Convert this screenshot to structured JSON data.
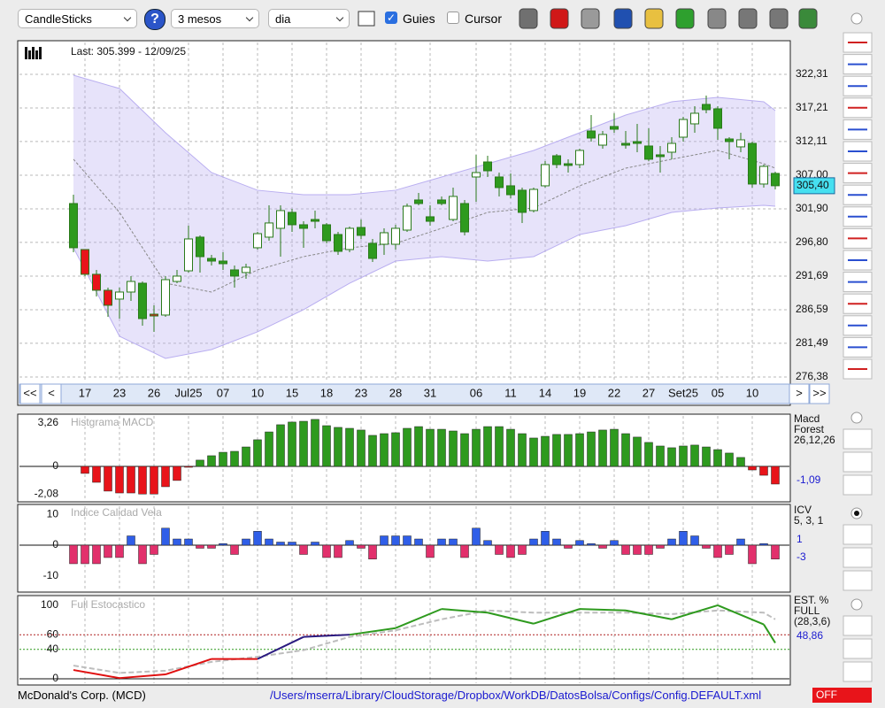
{
  "toolbar": {
    "chart_type": "CandleSticks",
    "help": "?",
    "period": "3 mesos",
    "interval": "dia",
    "guides": {
      "label": "Guies",
      "checked": true
    },
    "cursor": {
      "label": "Cursor",
      "checked": false
    }
  },
  "price_chart": {
    "type": "candlestick",
    "last": "Last: 305.399 - 12/09/25",
    "last_price_label": "305,40",
    "ohlc": [
      [
        302.7,
        304.04,
        295.31,
        295.99
      ],
      [
        295.72,
        295.72,
        291.69,
        291.96
      ],
      [
        291.96,
        292.63,
        288.6,
        289.54
      ],
      [
        289.54,
        289.94,
        285.51,
        287.26
      ],
      [
        288.2,
        289.94,
        285.24,
        289.27
      ],
      [
        289.27,
        291.69,
        287.93,
        290.88
      ],
      [
        290.61,
        290.88,
        284.17,
        285.24
      ],
      [
        285.91,
        287.26,
        283.23,
        285.64
      ],
      [
        285.78,
        291.69,
        285.51,
        291.15
      ],
      [
        290.88,
        292.63,
        290.61,
        291.69
      ],
      [
        292.49,
        299.34,
        292.23,
        297.33
      ],
      [
        297.6,
        297.87,
        292.23,
        294.64
      ],
      [
        294.37,
        294.91,
        293.3,
        293.97
      ],
      [
        293.97,
        295.31,
        292.63,
        293.57
      ],
      [
        292.63,
        293.3,
        289.94,
        291.69
      ],
      [
        292.23,
        293.57,
        291.29,
        293.03
      ],
      [
        295.99,
        298.4,
        295.72,
        298.13
      ],
      [
        297.6,
        302.43,
        297.06,
        299.75
      ],
      [
        298.94,
        302.43,
        294.64,
        301.63
      ],
      [
        301.36,
        301.9,
        298.4,
        299.48
      ],
      [
        299.48,
        300.01,
        295.99,
        298.94
      ],
      [
        300.28,
        301.63,
        298.94,
        300.01
      ],
      [
        299.48,
        299.75,
        296.66,
        297.06
      ],
      [
        298.0,
        298.4,
        294.91,
        295.45
      ],
      [
        295.72,
        299.21,
        295.31,
        298.94
      ],
      [
        299.07,
        300.28,
        297.33,
        297.87
      ],
      [
        296.66,
        297.33,
        293.84,
        294.37
      ],
      [
        296.52,
        298.94,
        294.91,
        298.27
      ],
      [
        296.52,
        299.48,
        295.72,
        298.94
      ],
      [
        298.67,
        302.7,
        298.4,
        302.3
      ],
      [
        303.24,
        304.31,
        302.43,
        302.7
      ],
      [
        300.69,
        302.43,
        299.34,
        300.01
      ],
      [
        303.24,
        303.78,
        302.43,
        302.7
      ],
      [
        300.28,
        305.12,
        300.01,
        303.78
      ],
      [
        302.7,
        303.24,
        297.87,
        298.4
      ],
      [
        306.73,
        310.09,
        302.97,
        307.4
      ],
      [
        309.01,
        309.95,
        306.73,
        307.67
      ],
      [
        306.73,
        307.4,
        303.78,
        305.12
      ],
      [
        305.39,
        307.27,
        303.51,
        304.04
      ],
      [
        304.72,
        305.12,
        299.75,
        301.36
      ],
      [
        301.63,
        305.12,
        301.36,
        304.85
      ],
      [
        305.39,
        309.15,
        305.12,
        308.61
      ],
      [
        309.95,
        310.22,
        308.07,
        308.61
      ],
      [
        308.74,
        309.42,
        307.4,
        308.48
      ],
      [
        308.61,
        311.03,
        308.07,
        310.76
      ],
      [
        313.71,
        316.13,
        312.1,
        312.64
      ],
      [
        311.56,
        313.71,
        311.03,
        313.18
      ],
      [
        314.39,
        316.4,
        313.44,
        313.98
      ],
      [
        311.83,
        313.71,
        311.03,
        311.56
      ],
      [
        312.1,
        314.79,
        310.49,
        311.83
      ],
      [
        311.43,
        314.12,
        309.15,
        309.42
      ],
      [
        310.09,
        311.43,
        307.4,
        309.82
      ],
      [
        310.49,
        312.77,
        309.42,
        311.83
      ],
      [
        312.77,
        315.86,
        312.1,
        315.46
      ],
      [
        314.79,
        317.47,
        313.44,
        316.4
      ],
      [
        317.74,
        319.09,
        316.4,
        316.94
      ],
      [
        317.07,
        317.47,
        312.37,
        314.12
      ],
      [
        312.5,
        312.77,
        309.42,
        312.1
      ],
      [
        311.3,
        313.44,
        310.49,
        312.37
      ],
      [
        311.83,
        312.1,
        305.12,
        305.66
      ],
      [
        305.66,
        308.61,
        305.12,
        308.34
      ],
      [
        307.27,
        307.54,
        304.85,
        305.4
      ]
    ],
    "colors": [
      "#2e9a1e",
      "#e8141a",
      "#e8141a",
      "#e8141a",
      "#ffffff",
      "#ffffff",
      "#2e9a1e",
      "#e8141a",
      "#ffffff",
      "#ffffff",
      "#ffffff",
      "#2e9a1e",
      "#2e9a1e",
      "#2e9a1e",
      "#2e9a1e",
      "#ffffff",
      "#ffffff",
      "#ffffff",
      "#ffffff",
      "#2e9a1e",
      "#2e9a1e",
      "#2e9a1e",
      "#2e9a1e",
      "#2e9a1e",
      "#ffffff",
      "#2e9a1e",
      "#2e9a1e",
      "#ffffff",
      "#ffffff",
      "#ffffff",
      "#2e9a1e",
      "#2e9a1e",
      "#2e9a1e",
      "#ffffff",
      "#2e9a1e",
      "#ffffff",
      "#2e9a1e",
      "#2e9a1e",
      "#2e9a1e",
      "#2e9a1e",
      "#ffffff",
      "#ffffff",
      "#2e9a1e",
      "#2e9a1e",
      "#ffffff",
      "#2e9a1e",
      "#ffffff",
      "#2e9a1e",
      "#2e9a1e",
      "#2e9a1e",
      "#2e9a1e",
      "#2e9a1e",
      "#ffffff",
      "#ffffff",
      "#ffffff",
      "#2e9a1e",
      "#2e9a1e",
      "#2e9a1e",
      "#ffffff",
      "#2e9a1e",
      "#ffffff",
      "#2e9a1e"
    ],
    "bands": {
      "color": "#b9aef0",
      "x": [
        0,
        4,
        8,
        12,
        16,
        20,
        24,
        28,
        32,
        36,
        40,
        44,
        48,
        52,
        56,
        60,
        61
      ],
      "upper": [
        322.17,
        320.16,
        313.44,
        307.4,
        304.72,
        304.04,
        304.04,
        304.72,
        306.73,
        308.74,
        310.76,
        313.44,
        316.13,
        318.15,
        318.82,
        318.15,
        316.8
      ],
      "lower": [
        295.99,
        282.56,
        279.2,
        280.54,
        283.23,
        286.59,
        290.61,
        293.97,
        294.64,
        293.97,
        294.64,
        298.0,
        299.34,
        301.36,
        302.03,
        302.43,
        302.3
      ],
      "middle": [
        309.42,
        301.36,
        290.61,
        289.27,
        292.63,
        294.64,
        295.99,
        296.66,
        298.94,
        301.36,
        302.03,
        305.39,
        308.07,
        309.42,
        310.76,
        308.74,
        308.07
      ]
    },
    "ylim": [
      275.57,
      327.14
    ],
    "yticks": [
      {
        "value": 322.31,
        "label": "322,31"
      },
      {
        "value": 317.21,
        "label": "317,21"
      },
      {
        "value": 312.11,
        "label": "312,11"
      },
      {
        "value": 307.0,
        "label": "307,00"
      },
      {
        "value": 301.9,
        "label": "301,90"
      },
      {
        "value": 296.8,
        "label": "296,80"
      },
      {
        "value": 291.69,
        "label": "291,69"
      },
      {
        "value": 286.59,
        "label": "286,59"
      },
      {
        "value": 281.49,
        "label": "281,49"
      },
      {
        "value": 276.38,
        "label": "276,38"
      }
    ],
    "xticks": [
      {
        "value": 1,
        "label": "17"
      },
      {
        "value": 4,
        "label": "23"
      },
      {
        "value": 7,
        "label": "26"
      },
      {
        "value": 10,
        "label": "Jul25"
      },
      {
        "value": 13,
        "label": "07"
      },
      {
        "value": 16,
        "label": "10"
      },
      {
        "value": 19,
        "label": "15"
      },
      {
        "value": 22,
        "label": "18"
      },
      {
        "value": 25,
        "label": "23"
      },
      {
        "value": 28,
        "label": "28"
      },
      {
        "value": 31,
        "label": "31"
      },
      {
        "value": 35,
        "label": "06"
      },
      {
        "value": 38,
        "label": "11"
      },
      {
        "value": 41,
        "label": "14"
      },
      {
        "value": 44,
        "label": "19"
      },
      {
        "value": 47,
        "label": "22"
      },
      {
        "value": 50,
        "label": "27"
      },
      {
        "value": 53,
        "label": "Set25"
      },
      {
        "value": 56,
        "label": "05"
      },
      {
        "value": 59,
        "label": "10"
      }
    ],
    "nav": [
      "<<",
      "<",
      ">",
      ">>"
    ]
  },
  "macd": {
    "type": "bar",
    "title": "Histgrama MACD",
    "legend": [
      "Macd",
      "Forest",
      "26,12,26"
    ],
    "readout": "-1,09",
    "values": [
      null,
      -0.53,
      -1.2,
      -1.86,
      -2.0,
      -2.0,
      -2.08,
      -2.08,
      -1.53,
      -1.06,
      -0.07,
      0.47,
      0.8,
      1.06,
      1.13,
      1.46,
      2.0,
      2.59,
      3.13,
      3.33,
      3.39,
      3.53,
      3.06,
      2.93,
      2.86,
      2.73,
      2.33,
      2.46,
      2.53,
      2.86,
      2.99,
      2.79,
      2.79,
      2.66,
      2.46,
      2.79,
      2.99,
      2.99,
      2.79,
      2.46,
      2.13,
      2.26,
      2.4,
      2.4,
      2.46,
      2.59,
      2.73,
      2.79,
      2.46,
      2.2,
      1.8,
      1.53,
      1.4,
      1.53,
      1.6,
      1.46,
      1.26,
      1.0,
      0.67,
      -0.27,
      -0.67,
      -1.33
    ],
    "colors": {
      "positive": "#2e9a1e",
      "negative": "#e8141a"
    },
    "ylim": [
      -2.53,
      3.79
    ],
    "yticks": [
      {
        "value": 3.26,
        "label": "3,26"
      },
      0,
      {
        "value": -2.08,
        "label": "-2,08"
      }
    ]
  },
  "icv": {
    "type": "bar",
    "title": "Indice Calidad Vela",
    "legend": [
      "ICV",
      "5, 3, 1"
    ],
    "readouts": [
      "1",
      "-3"
    ],
    "values": [
      -6,
      -6,
      -6,
      -4,
      -4,
      3,
      -6,
      -3,
      5.5,
      2,
      2,
      -1,
      -1,
      0.5,
      -3,
      2,
      4.5,
      2,
      1,
      1,
      -3,
      1,
      -4,
      -4,
      1.5,
      -1,
      -4.5,
      3,
      3,
      3,
      2,
      -4,
      2,
      2,
      -4,
      5.5,
      1.5,
      -3,
      -4,
      -3,
      2,
      4.5,
      2,
      -1,
      1.5,
      0.5,
      -1,
      1.5,
      -3,
      -3,
      -3,
      -1,
      2,
      4.5,
      3,
      -1,
      -4,
      -3,
      2,
      -6,
      0.5,
      -4.5
    ],
    "colors": {
      "positive": "#2f5ee8",
      "negative": "#e2306c"
    },
    "ylim": [
      -14.6,
      12.6
    ],
    "yticks": [
      10,
      0,
      -10
    ]
  },
  "stochastic": {
    "type": "line",
    "title": "Full Estocastico",
    "legend": [
      "EST. %",
      "FULL",
      "(28,3,6)"
    ],
    "readout": "48,86",
    "x": [
      0,
      4,
      8,
      12,
      16,
      20,
      24,
      28,
      32,
      36,
      40,
      44,
      48,
      52,
      56,
      60,
      61
    ],
    "k": [
      12,
      1,
      6,
      27,
      27,
      57,
      60,
      69,
      95,
      90,
      75,
      95,
      93,
      81,
      100,
      74,
      48.86
    ],
    "d": [
      18,
      8,
      11,
      23,
      30,
      39,
      57,
      66,
      81,
      93,
      90,
      90,
      90,
      88,
      93,
      90,
      81
    ],
    "levels": [
      60,
      40
    ],
    "level_colors": [
      "#b02020",
      "#2e9a1e"
    ],
    "k_colors": [
      "#2e9a1e",
      "#2a1a80",
      "#e01010"
    ],
    "d_color": "#bdbdbd",
    "ylim": [
      -6,
      110.8
    ],
    "yticks": [
      100,
      60,
      40,
      0
    ]
  },
  "footer": {
    "company": "McDonald's Corp. (MCD)",
    "path": "/Users/mserra/Library/CloudStorage/Dropbox/WorkDB/DatosBolsa/Configs/Config.DEFAULT.xml",
    "status": "OFF"
  }
}
